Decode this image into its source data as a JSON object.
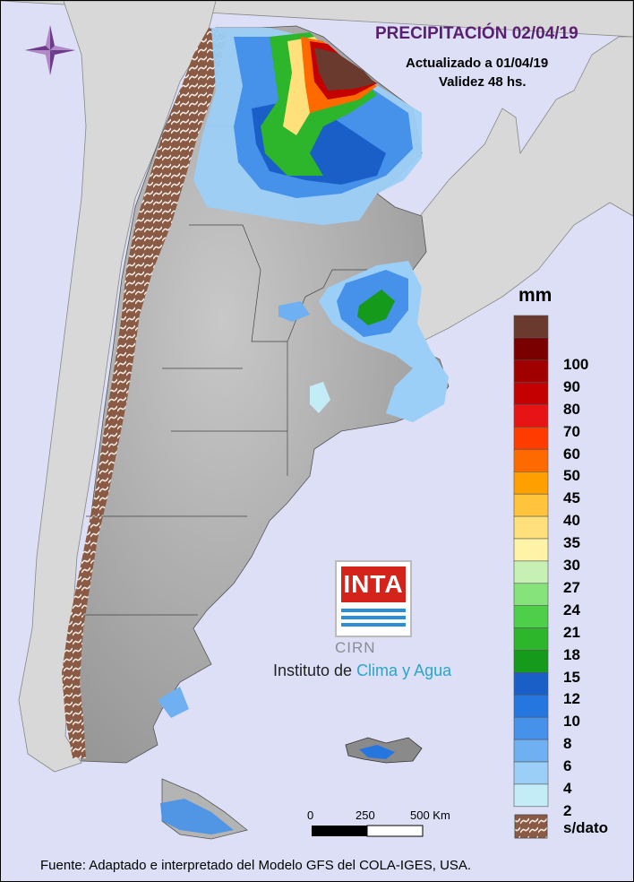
{
  "header": {
    "title": "PRECIPITACIÓN 02/04/19",
    "updated": "Actualizado a 01/04/19",
    "validity": "Validez 48 hs."
  },
  "legend": {
    "unit": "mm",
    "items": [
      {
        "label": "",
        "color": "#6b3a2e"
      },
      {
        "label": "100",
        "color": "#7a0000"
      },
      {
        "label": "90",
        "color": "#a00000"
      },
      {
        "label": "80",
        "color": "#c40000"
      },
      {
        "label": "70",
        "color": "#e61414"
      },
      {
        "label": "60",
        "color": "#ff3c00"
      },
      {
        "label": "50",
        "color": "#ff6a00"
      },
      {
        "label": "45",
        "color": "#ffa000"
      },
      {
        "label": "40",
        "color": "#ffc43c"
      },
      {
        "label": "35",
        "color": "#ffe07a"
      },
      {
        "label": "30",
        "color": "#fff3a8"
      },
      {
        "label": "27",
        "color": "#c6f0b4"
      },
      {
        "label": "24",
        "color": "#86e27a"
      },
      {
        "label": "21",
        "color": "#4ecf4a"
      },
      {
        "label": "18",
        "color": "#2db52c"
      },
      {
        "label": "15",
        "color": "#169a1c"
      },
      {
        "label": "12",
        "color": "#1a5fc8"
      },
      {
        "label": "10",
        "color": "#2676e0"
      },
      {
        "label": "8",
        "color": "#4691ea"
      },
      {
        "label": "6",
        "color": "#6fb0f2"
      },
      {
        "label": "4",
        "color": "#9ccff7"
      },
      {
        "label": "2",
        "color": "#c4ecf7"
      }
    ],
    "no_data_label": "s/dato",
    "no_data_color": "#8b5a44"
  },
  "scale_bar": {
    "labels": [
      "0",
      "250",
      "500 Km"
    ]
  },
  "logo": {
    "inta": "INTA",
    "cirn": "CIRN",
    "institute_prefix": "Instituto de ",
    "institute_highlight": "Clima y Agua"
  },
  "footer": "Fuente: Adaptado e interpretado del Modelo GFS del COLA-IGES, USA.",
  "colors": {
    "ocean": "#dcdff5",
    "land_neighbors": "#d8d8d8",
    "argentina_relief": "#b4b4b4",
    "title": "#5a1f6e"
  }
}
